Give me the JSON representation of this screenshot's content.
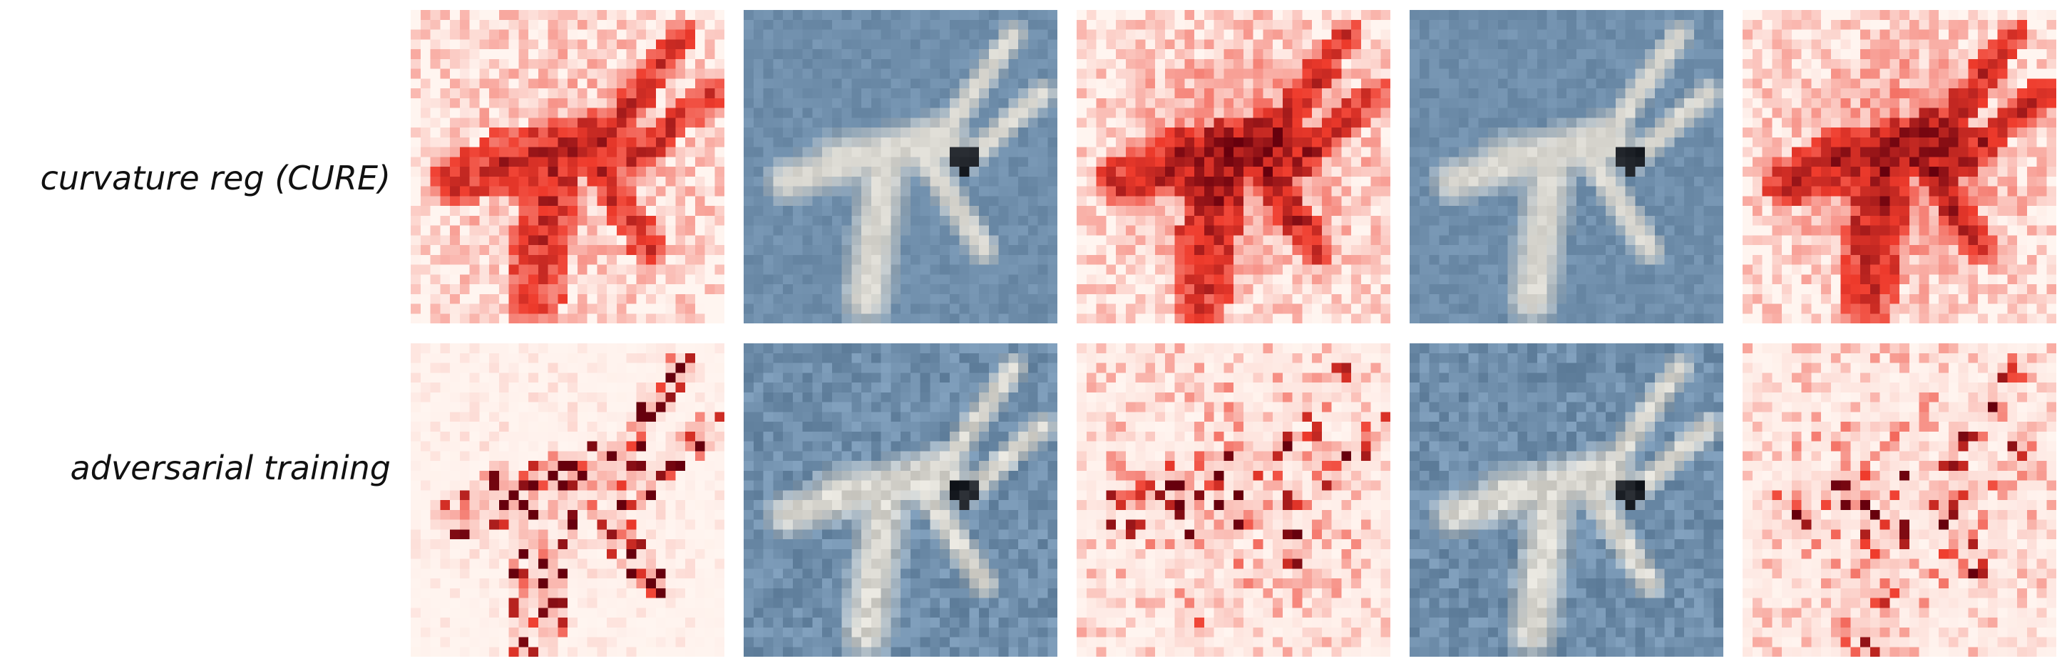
{
  "rows": [
    {
      "label": "curvature reg (CURE)"
    },
    {
      "label": "adversarial training"
    }
  ],
  "columns": [
    {
      "kind": "heatmap",
      "variant": "saliency-a"
    },
    {
      "kind": "image",
      "variant": "airplane"
    },
    {
      "kind": "heatmap",
      "variant": "saliency-b"
    },
    {
      "kind": "image",
      "variant": "airplane"
    },
    {
      "kind": "heatmap",
      "variant": "saliency-c"
    }
  ],
  "colors": {
    "heat_low": "#fff5f0",
    "heat_mid": "#ef3b2c",
    "heat_high": "#67000d",
    "sky": "#6f8eab",
    "plane": "#d9d7d0"
  }
}
